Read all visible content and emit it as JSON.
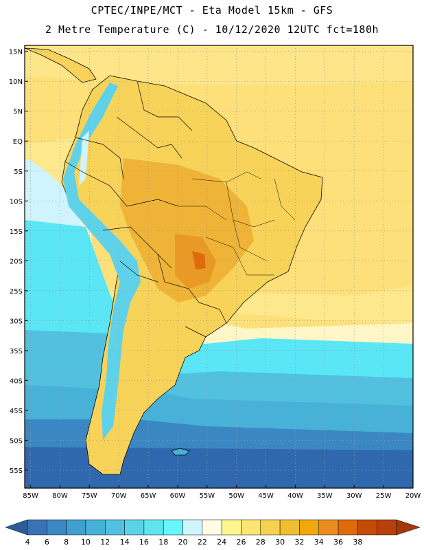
{
  "header": {
    "line1": "CPTEC/INPE/MCT -  Eta Model 15km - GFS",
    "line2": "2 Metre Temperature (C) - 10/12/2020 12UTC fct=180h"
  },
  "map": {
    "lon_range": [
      -86,
      -20
    ],
    "lat_range": [
      -58,
      16
    ],
    "lat_ticks": [
      "15N",
      "10N",
      "5N",
      "EQ",
      "5S",
      "10S",
      "15S",
      "20S",
      "25S",
      "30S",
      "35S",
      "40S",
      "45S",
      "50S",
      "55S"
    ],
    "lon_ticks": [
      "85W",
      "80W",
      "75W",
      "70W",
      "65W",
      "60W",
      "55W",
      "50W",
      "45W",
      "40W",
      "35W",
      "30W",
      "25W",
      "20W"
    ],
    "grid": "dotted"
  },
  "colorbar": {
    "labels": [
      "4",
      "6",
      "8",
      "10",
      "12",
      "14",
      "16",
      "18",
      "20",
      "22",
      "24",
      "26",
      "28",
      "30",
      "32",
      "34",
      "36",
      "38"
    ],
    "colors": [
      "#3973b6",
      "#3b87c4",
      "#3f9fd0",
      "#47b1d8",
      "#52c1df",
      "#5ad3e6",
      "#5fe5ef",
      "#66f6fb",
      "#cff4fd",
      "#fffbe6",
      "#fff68f",
      "#fee572",
      "#f6d250",
      "#efbf32",
      "#f0a80a",
      "#ea8c1e",
      "#df6a0b",
      "#c54b08",
      "#b8400a"
    ],
    "end_left": "#2c5d98",
    "end_right": "#a63808"
  },
  "palette": {
    "ocean_tropical": "#fde07a",
    "ocean_warm": "#fee88e",
    "ocean_mid": "#fff9d2",
    "ocean_cool": "#5ae6f5",
    "ocean_south": "#44b5dc",
    "ocean_far_south": "#3a8cc6",
    "ocean_deep_south": "#3068ad",
    "land_base": "#f7d35a",
    "land_hot": "#efb437",
    "land_hottest": "#e99a26",
    "andes_cold": "#5fd2ea",
    "border": "#000000"
  }
}
